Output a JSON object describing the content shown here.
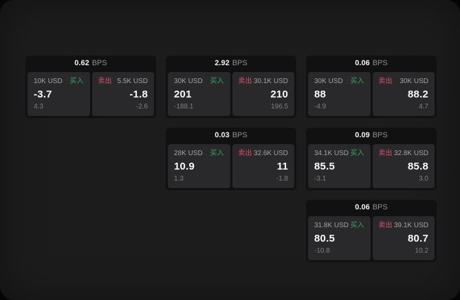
{
  "page": {
    "bps_unit": "BPS",
    "buy_label": "买入",
    "sell_label": "卖出"
  },
  "colors": {
    "green": "#35a75f",
    "red": "#d9516c",
    "panel_bg": "#1c1c1d",
    "card_bg": "#111112",
    "pane_bg": "#29292b"
  },
  "cards": [
    {
      "bps_value": "0.62",
      "grid": {
        "row": 1,
        "col": 1
      },
      "buy": {
        "amount": "10K USD",
        "value": "-3.7",
        "change": "4.3"
      },
      "sell": {
        "amount": "5.5K USD",
        "value": "-1.8",
        "change": "-2.6"
      }
    },
    {
      "bps_value": "2.92",
      "grid": {
        "row": 1,
        "col": 2
      },
      "buy": {
        "amount": "30K USD",
        "value": "201",
        "change": "-188.1"
      },
      "sell": {
        "amount": "30.1K USD",
        "value": "210",
        "change": "196.5"
      }
    },
    {
      "bps_value": "0.06",
      "grid": {
        "row": 1,
        "col": 3
      },
      "buy": {
        "amount": "30K USD",
        "value": "88",
        "change": "-4.9"
      },
      "sell": {
        "amount": "30K USD",
        "value": "88.2",
        "change": "4.7"
      }
    },
    {
      "bps_value": "0.03",
      "grid": {
        "row": 2,
        "col": 2
      },
      "buy": {
        "amount": "28K USD",
        "value": "10.9",
        "change": "1.3"
      },
      "sell": {
        "amount": "32.6K USD",
        "value": "11",
        "change": "-1.8"
      }
    },
    {
      "bps_value": "0.09",
      "grid": {
        "row": 2,
        "col": 3
      },
      "buy": {
        "amount": "34.1K USD",
        "value": "85.5",
        "change": "-3.1"
      },
      "sell": {
        "amount": "32.8K USD",
        "value": "85.8",
        "change": "3.0"
      }
    },
    {
      "bps_value": "0.06",
      "grid": {
        "row": 3,
        "col": 3
      },
      "buy": {
        "amount": "31.8K USD",
        "value": "80.5",
        "change": "-10.8"
      },
      "sell": {
        "amount": "39.1K USD",
        "value": "80.7",
        "change": "10.2"
      }
    }
  ]
}
